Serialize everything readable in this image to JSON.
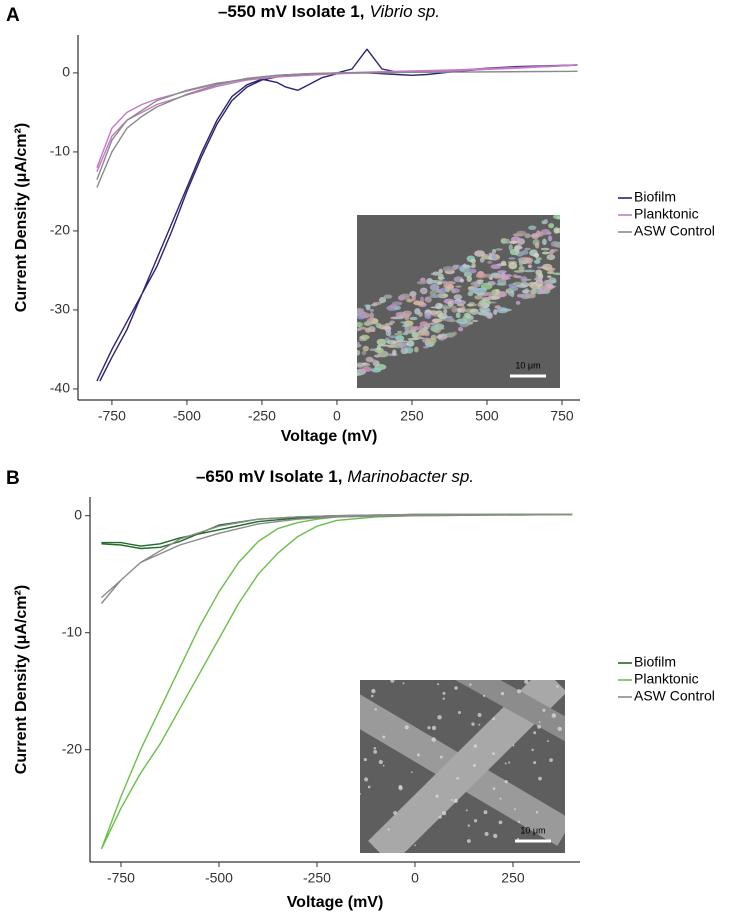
{
  "chart_data": [
    {
      "type": "line",
      "panel_label": "A",
      "title": "–550 mV Isolate 1,",
      "title_italic": "Vibrio sp.",
      "x_label": "Voltage (mV)",
      "y_label": "Current Density (μA/cm²)",
      "xlim": [
        -863,
        810
      ],
      "ylim": [
        -41.4,
        4.8
      ],
      "xticks": [
        -750,
        -500,
        -250,
        0,
        250,
        500,
        750
      ],
      "yticks": [
        -40,
        -30,
        -20,
        -10,
        0
      ],
      "inset_scale_label": "10 μm",
      "series": [
        {
          "name": "Biofilm",
          "color": "#2b2470",
          "x": [
            -800,
            -750,
            -700,
            -650,
            -600,
            -550,
            -500,
            -450,
            -400,
            -350,
            -300,
            -250,
            -200,
            -150,
            -100,
            -50,
            0,
            50,
            80,
            100,
            150,
            200,
            300,
            400,
            500,
            600,
            700,
            800,
            700,
            600,
            500,
            400,
            300,
            250,
            200,
            150,
            100,
            50,
            0,
            -50,
            -100,
            -130,
            -170,
            -200,
            -250,
            -300,
            -350,
            -400,
            -450,
            -500,
            -550,
            -600,
            -650,
            -700,
            -750,
            -790
          ],
          "values": [
            -39,
            -35,
            -31.5,
            -28,
            -24.5,
            -20,
            -15,
            -10.5,
            -6.5,
            -3.5,
            -1.8,
            -0.9,
            -0.5,
            -0.3,
            -0.2,
            -0.1,
            0,
            0.5,
            2,
            3,
            0.5,
            0.1,
            0.1,
            0.3,
            0.6,
            0.8,
            0.9,
            1.0,
            0.8,
            0.7,
            0.5,
            0.2,
            -0.2,
            -0.3,
            -0.2,
            -0.1,
            0,
            0,
            -0.1,
            -0.6,
            -1.6,
            -2.2,
            -1.8,
            -1.2,
            -0.8,
            -1.5,
            -3,
            -6,
            -10,
            -14.5,
            -19,
            -23.5,
            -28,
            -32.5,
            -36,
            -39
          ]
        },
        {
          "name": "Planktonic",
          "color": "#c678c8",
          "x": [
            -800,
            -750,
            -700,
            -650,
            -600,
            -500,
            -400,
            -300,
            -200,
            -100,
            0,
            200,
            400,
            600,
            800,
            600,
            400,
            200,
            0,
            -200,
            -300,
            -400,
            -500,
            -600,
            -700,
            -750,
            -800
          ],
          "values": [
            -12,
            -7,
            -5,
            -4,
            -3.3,
            -2.3,
            -1.4,
            -0.7,
            -0.3,
            -0.1,
            0,
            0.2,
            0.4,
            0.7,
            1.0,
            0.6,
            0.3,
            0.1,
            -0.1,
            -0.5,
            -0.9,
            -1.7,
            -2.8,
            -4,
            -6,
            -8,
            -12.5
          ]
        },
        {
          "name": "ASW Control",
          "color": "#8a8a8a",
          "x": [
            -800,
            -750,
            -700,
            -650,
            -600,
            -500,
            -400,
            -300,
            -200,
            -100,
            0,
            400,
            800,
            400,
            0,
            -200,
            -400,
            -500,
            -600,
            -700,
            -750,
            -800
          ],
          "values": [
            -14.5,
            -10,
            -7,
            -5.5,
            -4.3,
            -2.7,
            -1.5,
            -0.7,
            -0.3,
            -0.1,
            0,
            0.1,
            0.2,
            0.1,
            0,
            -0.3,
            -1.3,
            -2.2,
            -3.5,
            -6,
            -8.5,
            -13.5
          ]
        }
      ]
    },
    {
      "type": "line",
      "panel_label": "B",
      "title": "–650 mV Isolate 1,",
      "title_italic": "Marinobacter sp.",
      "x_label": "Voltage (mV)",
      "y_label": "Current Density (μA/cm²)",
      "xlim": [
        -829,
        421
      ],
      "ylim": [
        -29.6,
        1.6
      ],
      "xticks": [
        -750,
        -500,
        -250,
        0,
        250
      ],
      "yticks": [
        -20,
        -10,
        0
      ],
      "inset_scale_label": "10 μm",
      "series": [
        {
          "name": "Biofilm",
          "color": "#1f6b2a",
          "x": [
            -800,
            -750,
            -700,
            -650,
            -600,
            -550,
            -500,
            -400,
            -300,
            -200,
            0,
            400,
            0,
            -200,
            -300,
            -400,
            -500,
            -600,
            -650,
            -700,
            -750,
            -800
          ],
          "values": [
            -2.4,
            -2.5,
            -2.8,
            -2.7,
            -2.2,
            -1.5,
            -0.8,
            -0.3,
            -0.1,
            0,
            0.1,
            0.1,
            0.1,
            0,
            -0.2,
            -0.5,
            -1.2,
            -1.9,
            -2.4,
            -2.6,
            -2.3,
            -2.3
          ]
        },
        {
          "name": "Planktonic",
          "color": "#6abf4b",
          "x": [
            -800,
            -750,
            -700,
            -650,
            -600,
            -550,
            -500,
            -450,
            -400,
            -350,
            -300,
            -250,
            -200,
            -100,
            0,
            400,
            0,
            -100,
            -200,
            -250,
            -300,
            -350,
            -400,
            -450,
            -500,
            -550,
            -600,
            -650,
            -700,
            -750,
            -800
          ],
          "values": [
            -28.5,
            -24,
            -20,
            -16.5,
            -13,
            -9.5,
            -6.5,
            -4,
            -2.2,
            -1.1,
            -0.6,
            -0.3,
            -0.1,
            0,
            0.1,
            0.1,
            0,
            -0.1,
            -0.4,
            -0.9,
            -1.8,
            -3.2,
            -5,
            -7.5,
            -10.5,
            -13.5,
            -16.5,
            -19.5,
            -22,
            -25,
            -28.5
          ]
        },
        {
          "name": "ASW Control",
          "color": "#8a8a8a",
          "x": [
            -800,
            -750,
            -700,
            -650,
            -600,
            -500,
            -400,
            -300,
            -200,
            0,
            400,
            0,
            -200,
            -300,
            -400,
            -500,
            -600,
            -700,
            -750,
            -800
          ],
          "values": [
            -7.5,
            -5.5,
            -4,
            -3,
            -2,
            -0.9,
            -0.3,
            -0.1,
            0,
            0.1,
            0.1,
            0,
            -0.1,
            -0.3,
            -0.7,
            -1.5,
            -2.5,
            -4,
            -5.5,
            -7
          ]
        }
      ]
    }
  ]
}
